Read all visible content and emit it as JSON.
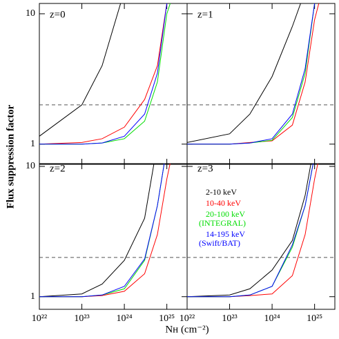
{
  "figure": {
    "xlabel": "Nʜ (cm⁻²)",
    "ylabel": "Flux suppression factor"
  },
  "chart_data": [
    {
      "type": "line",
      "annotation": "z=0",
      "xscale": "log",
      "yscale": "log",
      "x": [
        1e+22,
        1e+23,
        3e+23,
        1e+24,
        3e+24,
        6e+24,
        1e+25,
        1.5e+25
      ],
      "series": [
        {
          "color": "#000000",
          "values": [
            1.15,
            2.0,
            4.0,
            15,
            null,
            null,
            null,
            null
          ]
        },
        {
          "color": "#ff0000",
          "values": [
            1.0,
            1.03,
            1.1,
            1.35,
            2.2,
            4,
            12,
            null
          ]
        },
        {
          "color": "#00dd00",
          "values": [
            1.0,
            1.0,
            1.02,
            1.1,
            1.5,
            3,
            10,
            15
          ]
        },
        {
          "color": "#0000ff",
          "values": [
            1.0,
            1.0,
            1.02,
            1.15,
            1.7,
            3.5,
            12,
            null
          ]
        }
      ],
      "xlim": [
        1e+22,
        3e+25
      ],
      "ylim": [
        0.7,
        12
      ],
      "xticks": [
        1e+22,
        1e+23,
        1e+24,
        1e+25
      ],
      "yticks": [
        1,
        10
      ],
      "hline": 2
    },
    {
      "type": "line",
      "annotation": "z=1",
      "xscale": "log",
      "yscale": "log",
      "x": [
        1e+22,
        1e+23,
        3e+23,
        1e+24,
        3e+24,
        6e+24,
        1e+25,
        1.5e+25
      ],
      "series": [
        {
          "color": "#000000",
          "values": [
            1.03,
            1.2,
            1.7,
            3.3,
            8,
            15,
            null,
            null
          ]
        },
        {
          "color": "#ff0000",
          "values": [
            1.0,
            1.0,
            1.03,
            1.06,
            1.4,
            3,
            9,
            15
          ]
        },
        {
          "color": "#00dd00",
          "values": [
            1.0,
            1.0,
            1.02,
            1.07,
            1.6,
            3.5,
            12,
            null
          ]
        },
        {
          "color": "#0000ff",
          "values": [
            1.0,
            1.0,
            1.02,
            1.1,
            1.7,
            3.8,
            12,
            null
          ]
        }
      ],
      "xlim": [
        1e+22,
        3e+25
      ],
      "ylim": [
        0.7,
        12
      ],
      "xticks": [
        1e+22,
        1e+23,
        1e+24,
        1e+25
      ],
      "yticks": [
        1,
        10
      ],
      "hline": 2
    },
    {
      "type": "line",
      "annotation": "z=2",
      "xscale": "log",
      "yscale": "log",
      "x": [
        1e+22,
        1e+23,
        3e+23,
        1e+24,
        3e+24,
        6e+24,
        1e+25,
        1.5e+25
      ],
      "series": [
        {
          "color": "#000000",
          "values": [
            1.0,
            1.05,
            1.25,
            1.9,
            4,
            15,
            null,
            null
          ]
        },
        {
          "color": "#ff0000",
          "values": [
            1.0,
            1.0,
            1.02,
            1.1,
            1.5,
            3,
            8,
            15
          ]
        },
        {
          "color": "#00dd00",
          "values": [
            1.0,
            1.0,
            1.03,
            1.15,
            1.9,
            5,
            14,
            null
          ]
        },
        {
          "color": "#0000ff",
          "values": [
            1.0,
            1.0,
            1.03,
            1.2,
            1.95,
            5,
            14,
            null
          ]
        }
      ],
      "xlim": [
        1e+22,
        3e+25
      ],
      "ylim": [
        0.8,
        10.5
      ],
      "xticks": [
        {
          "value": 1e+22,
          "label": "10²²"
        },
        {
          "value": 1e+23,
          "label": "10²³"
        },
        {
          "value": 1e+24,
          "label": "10²⁴"
        },
        {
          "value": 1e+25,
          "label": "10²⁵"
        }
      ],
      "yticks": [
        1,
        10
      ],
      "hline": 2
    },
    {
      "type": "line",
      "annotation": "z=3",
      "xscale": "log",
      "yscale": "log",
      "legend": true,
      "x": [
        1e+22,
        1e+23,
        3e+23,
        1e+24,
        3e+24,
        6e+24,
        1e+25,
        1.5e+25
      ],
      "series": [
        {
          "name": "2-10 keV",
          "color": "#000000",
          "values": [
            1.0,
            1.03,
            1.15,
            1.6,
            2.7,
            6,
            15,
            null
          ]
        },
        {
          "name": "10-40 keV",
          "color": "#ff0000",
          "values": [
            1.0,
            1.0,
            1.02,
            1.05,
            1.45,
            3,
            8,
            15
          ]
        },
        {
          "name": "20-100 keV (INTEGRAL)",
          "color": "#00dd00",
          "values": [
            1.0,
            1.0,
            1.03,
            1.2,
            2.4,
            5,
            12,
            null
          ]
        },
        {
          "name": "14-195 keV (Swift/BAT)",
          "color": "#0000ff",
          "values": [
            1.0,
            1.0,
            1.03,
            1.2,
            2.5,
            5,
            12,
            null
          ]
        }
      ],
      "xlim": [
        1e+22,
        3e+25
      ],
      "ylim": [
        0.8,
        10.5
      ],
      "xticks": [
        {
          "value": 1e+22,
          "label": "10²²"
        },
        {
          "value": 1e+23,
          "label": "10²³"
        },
        {
          "value": 1e+24,
          "label": "10²⁴"
        },
        {
          "value": 1e+25,
          "label": "10²⁵"
        }
      ],
      "yticks": [
        1,
        10
      ],
      "hline": 2
    }
  ]
}
